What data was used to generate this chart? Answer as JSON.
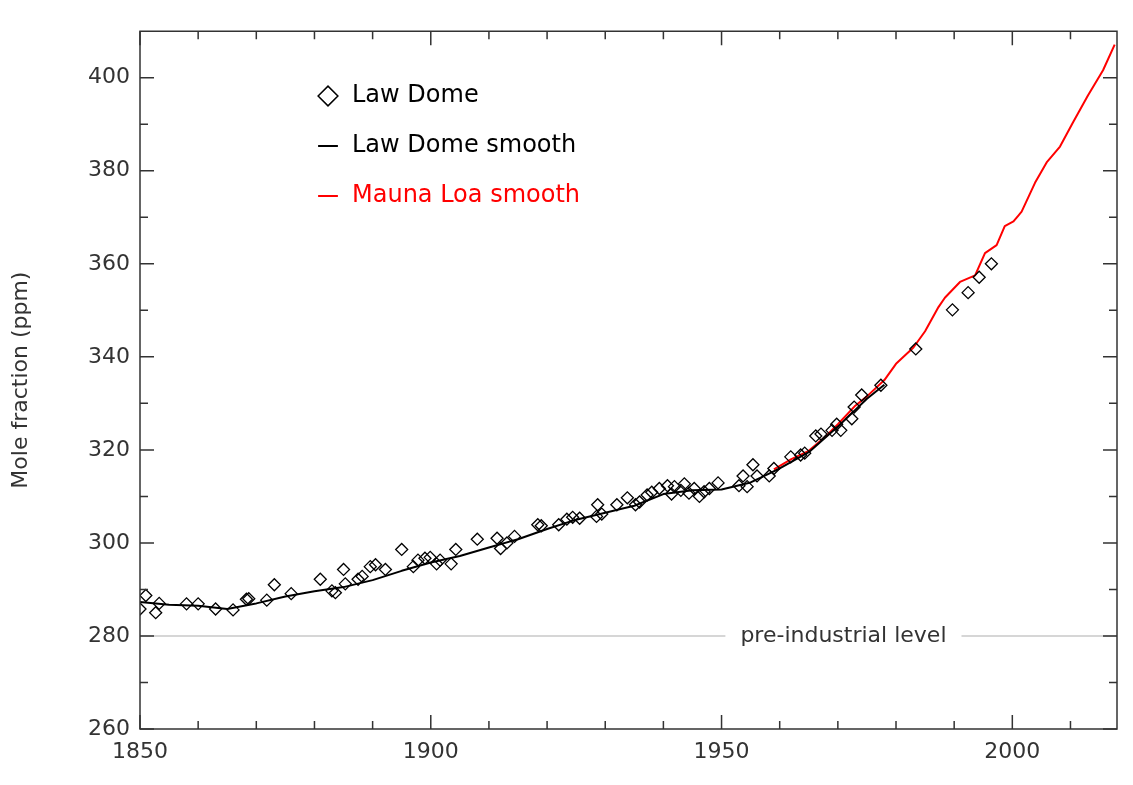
{
  "chart_data": {
    "type": "scatter",
    "ylabel": "Mole fraction (ppm)",
    "xlim": [
      1850,
      2018
    ],
    "ylim": [
      260,
      410
    ],
    "xticks": [
      1850,
      {
        "value": 1860,
        "label": null
      },
      {
        "value": 1870,
        "label": null
      },
      {
        "value": 1880,
        "label": null
      },
      {
        "value": 1890,
        "label": null
      },
      1900,
      {
        "value": 1910,
        "label": null
      },
      {
        "value": 1920,
        "label": null
      },
      {
        "value": 1930,
        "label": null
      },
      {
        "value": 1940,
        "label": null
      },
      1950,
      {
        "value": 1960,
        "label": null
      },
      {
        "value": 1970,
        "label": null
      },
      {
        "value": 1980,
        "label": null
      },
      {
        "value": 1990,
        "label": null
      },
      2000,
      {
        "value": 2010,
        "label": null
      }
    ],
    "yticks": [
      260,
      {
        "value": 270,
        "label": null
      },
      280,
      {
        "value": 290,
        "label": null
      },
      300,
      {
        "value": 310,
        "label": null
      },
      320,
      {
        "value": 330,
        "label": null
      },
      340,
      {
        "value": 350,
        "label": null
      },
      360,
      {
        "value": 370,
        "label": null
      },
      380,
      {
        "value": 390,
        "label": null
      },
      400
    ],
    "grid": false,
    "legend": "top left",
    "ref_lines": [
      {
        "axis": "y",
        "value": 280,
        "label": "pre-industrial level",
        "color": "#c8c8c8"
      }
    ],
    "series": [
      {
        "name": "Law Dome",
        "type": "scatter",
        "marker": "diamond",
        "color": "#000000",
        "x": [
          1850,
          1851,
          1852.7,
          1853.3,
          1858,
          1860,
          1863,
          1866,
          1868.3,
          1868.7,
          1871.8,
          1873.1,
          1876,
          1881,
          1883,
          1883.6,
          1885,
          1885.3,
          1887.5,
          1888.2,
          1889.6,
          1890.5,
          1892.2,
          1895,
          1897,
          1897.8,
          1899,
          1899.9,
          1901,
          1901.6,
          1903.5,
          1904.3,
          1908,
          1911.4,
          1912,
          1913.1,
          1914.4,
          1918.4,
          1919,
          1922,
          1923.4,
          1924.4,
          1925.6,
          1928.5,
          1928.7,
          1929.4,
          1932,
          1933.8,
          1935.2,
          1935.9,
          1937.2,
          1938,
          1939.3,
          1940.7,
          1941.4,
          1941.9,
          1943,
          1943.6,
          1944.4,
          1945.3,
          1946.2,
          1947,
          1947.9,
          1949.4,
          1953,
          1953.7,
          1954.4,
          1955.4,
          1956.1,
          1958.2,
          1959,
          1961.9,
          1963.6,
          1964.3,
          1966.2,
          1967.1,
          1969,
          1969.8,
          1970.5,
          1972.4,
          1972.8,
          1974.1,
          1977.4,
          1983.4,
          1989.7,
          1992.4,
          1994.3,
          1996.4
        ],
        "values": [
          285.8,
          288.7,
          285,
          287,
          286.9,
          286.9,
          285.8,
          285.6,
          287.9,
          288,
          287.7,
          291,
          289.1,
          292.2,
          289.7,
          289.3,
          294.3,
          291.2,
          292.2,
          292.8,
          294.9,
          295.3,
          294.3,
          298.6,
          294.9,
          296.3,
          296.7,
          296.9,
          295.5,
          296.3,
          295.5,
          298.6,
          300.8,
          301,
          298.8,
          300,
          301.4,
          303.9,
          303.7,
          303.9,
          305.1,
          305.5,
          305.3,
          305.7,
          308.2,
          306.2,
          308.2,
          309.7,
          308.2,
          308.8,
          310.3,
          310.9,
          311.7,
          312.3,
          310.5,
          312.1,
          311.3,
          312.7,
          310.7,
          311.7,
          310,
          311,
          311.7,
          312.9,
          312.3,
          314.4,
          312.1,
          316.8,
          314.4,
          314.4,
          316,
          318.5,
          318.9,
          319.3,
          323,
          323.4,
          324.2,
          325.5,
          324.2,
          326.7,
          329.2,
          331.8,
          333.9,
          341.7,
          350.1,
          353.8,
          357.1,
          360
        ]
      },
      {
        "name": "Law Dome smooth",
        "type": "line",
        "marker": "none",
        "color": "#000000",
        "x": [
          1850,
          1855,
          1860,
          1865,
          1870,
          1875,
          1880,
          1885,
          1890,
          1895,
          1900,
          1905,
          1910,
          1915,
          1920,
          1925,
          1930,
          1935,
          1940,
          1945,
          1950,
          1955,
          1960,
          1965,
          1970,
          1975,
          1978
        ],
        "values": [
          287.3,
          286.7,
          286.5,
          285.8,
          287,
          288.5,
          289.6,
          290.5,
          292,
          294,
          295.8,
          297.2,
          299,
          300.8,
          303,
          305,
          306.5,
          308,
          310.5,
          311.3,
          311.5,
          313,
          316,
          319.5,
          325,
          331,
          334
        ]
      },
      {
        "name": "Mauna Loa smooth",
        "type": "line",
        "marker": "none",
        "color": "#ff0000",
        "x": [
          1959,
          1962,
          1965,
          1968,
          1970,
          1973,
          1975,
          1978,
          1980,
          1983,
          1985,
          1987.3,
          1988.4,
          1991,
          1993.6,
          1995.3,
          1997.3,
          1998.7,
          2000.2,
          2001.6,
          2003.9,
          2005.9,
          2008.2,
          2010.4,
          2013,
          2015.6,
          2017.6
        ],
        "values": [
          315.8,
          318,
          319.8,
          323,
          325.5,
          329.5,
          331.5,
          335,
          338.5,
          342,
          345.5,
          350.7,
          352.7,
          356.1,
          357.5,
          362.3,
          364,
          368.1,
          369.1,
          371.2,
          377.4,
          381.8,
          385.2,
          390.3,
          396.2,
          401.6,
          407.1
        ]
      }
    ]
  }
}
